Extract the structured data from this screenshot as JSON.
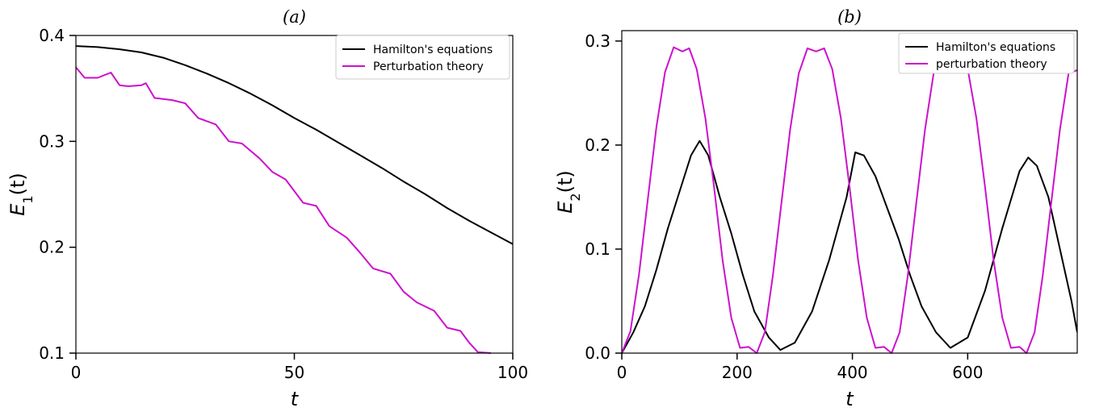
{
  "colors": {
    "hamilton": "#000000",
    "perturbation": "#cc11cc"
  },
  "chart_data": [
    {
      "type": "line",
      "panel_title": "(a)",
      "xlabel": "t",
      "ylabel": "E",
      "ylabel_sub": "1",
      "ylabel_suffix": "(t)",
      "xlim": [
        0,
        100
      ],
      "ylim": [
        0.1,
        0.4
      ],
      "xticks": [
        0,
        50,
        100
      ],
      "yticks": [
        0.1,
        0.2,
        0.3,
        0.4
      ],
      "xtick_labels": [
        "0",
        "50",
        "100"
      ],
      "ytick_labels": [
        "0.1",
        "0.2",
        "0.3",
        "0.4"
      ],
      "legend": "top-right",
      "grid": false,
      "series": [
        {
          "name": "Hamilton's equations",
          "color": "#000000",
          "x": [
            0,
            5,
            10,
            15,
            20,
            25,
            30,
            35,
            40,
            45,
            50,
            55,
            60,
            65,
            70,
            75,
            80,
            85,
            90,
            95,
            100
          ],
          "y": [
            0.39,
            0.389,
            0.387,
            0.384,
            0.379,
            0.372,
            0.364,
            0.355,
            0.345,
            0.334,
            0.322,
            0.311,
            0.299,
            0.287,
            0.275,
            0.262,
            0.25,
            0.237,
            0.225,
            0.214,
            0.203
          ]
        },
        {
          "name": "Perturbation theory",
          "color": "#cc11cc",
          "x": [
            0,
            2,
            5,
            8,
            10,
            12,
            15,
            16,
            18,
            22,
            25,
            28,
            32,
            35,
            38,
            42,
            45,
            48,
            52,
            55,
            58,
            62,
            65,
            68,
            72,
            75,
            78,
            82,
            85,
            88,
            90,
            92,
            95
          ],
          "y": [
            0.37,
            0.36,
            0.36,
            0.365,
            0.353,
            0.352,
            0.353,
            0.355,
            0.341,
            0.339,
            0.336,
            0.322,
            0.316,
            0.3,
            0.298,
            0.284,
            0.271,
            0.264,
            0.242,
            0.239,
            0.22,
            0.209,
            0.195,
            0.18,
            0.175,
            0.158,
            0.148,
            0.14,
            0.124,
            0.121,
            0.11,
            0.101,
            0.1
          ]
        }
      ]
    },
    {
      "type": "line",
      "panel_title": "(b)",
      "xlabel": "t",
      "ylabel": "E",
      "ylabel_sub": "2",
      "ylabel_suffix": "(t)",
      "xlim": [
        0,
        790
      ],
      "ylim": [
        0,
        0.31
      ],
      "xticks": [
        0,
        200,
        400,
        600
      ],
      "yticks": [
        0,
        0.1,
        0.2,
        0.3
      ],
      "xtick_labels": [
        "0",
        "200",
        "400",
        "600"
      ],
      "ytick_labels": [
        "0.0",
        "0.1",
        "0.2",
        "0.3"
      ],
      "legend": "top-right",
      "grid": false,
      "series": [
        {
          "name": "Hamilton's equations",
          "color": "#000000",
          "x": [
            0,
            20,
            40,
            60,
            80,
            100,
            120,
            135,
            150,
            170,
            190,
            210,
            230,
            255,
            275,
            300,
            330,
            360,
            390,
            405,
            420,
            440,
            460,
            480,
            500,
            520,
            545,
            570,
            600,
            630,
            660,
            690,
            705,
            720,
            740,
            760,
            780,
            790
          ],
          "y": [
            0.0,
            0.02,
            0.045,
            0.08,
            0.12,
            0.155,
            0.19,
            0.204,
            0.19,
            0.15,
            0.115,
            0.075,
            0.04,
            0.015,
            0.003,
            0.01,
            0.04,
            0.09,
            0.15,
            0.193,
            0.19,
            0.17,
            0.14,
            0.11,
            0.075,
            0.045,
            0.02,
            0.005,
            0.015,
            0.06,
            0.12,
            0.175,
            0.188,
            0.18,
            0.15,
            0.1,
            0.05,
            0.02
          ]
        },
        {
          "name": "perturbation theory",
          "color": "#cc11cc",
          "x": [
            0,
            15,
            30,
            45,
            60,
            75,
            90,
            105,
            117,
            130,
            145,
            160,
            175,
            190,
            205,
            220,
            234,
            248,
            262,
            277,
            292,
            307,
            322,
            337,
            351,
            365,
            380,
            395,
            410,
            425,
            440,
            455,
            468,
            482,
            496,
            511,
            526,
            541,
            556,
            571,
            585,
            600,
            615,
            630,
            645,
            660,
            675,
            690,
            702,
            716,
            730,
            745,
            760,
            775,
            790
          ],
          "y": [
            0.0,
            0.021,
            0.076,
            0.147,
            0.217,
            0.27,
            0.294,
            0.29,
            0.293,
            0.273,
            0.226,
            0.16,
            0.089,
            0.034,
            0.005,
            0.006,
            0.0,
            0.02,
            0.074,
            0.145,
            0.215,
            0.269,
            0.293,
            0.29,
            0.293,
            0.273,
            0.226,
            0.16,
            0.089,
            0.034,
            0.005,
            0.006,
            0.0,
            0.02,
            0.074,
            0.145,
            0.215,
            0.269,
            0.293,
            0.29,
            0.293,
            0.273,
            0.226,
            0.16,
            0.089,
            0.034,
            0.005,
            0.006,
            0.0,
            0.02,
            0.074,
            0.145,
            0.215,
            0.269,
            0.272
          ]
        }
      ]
    }
  ]
}
